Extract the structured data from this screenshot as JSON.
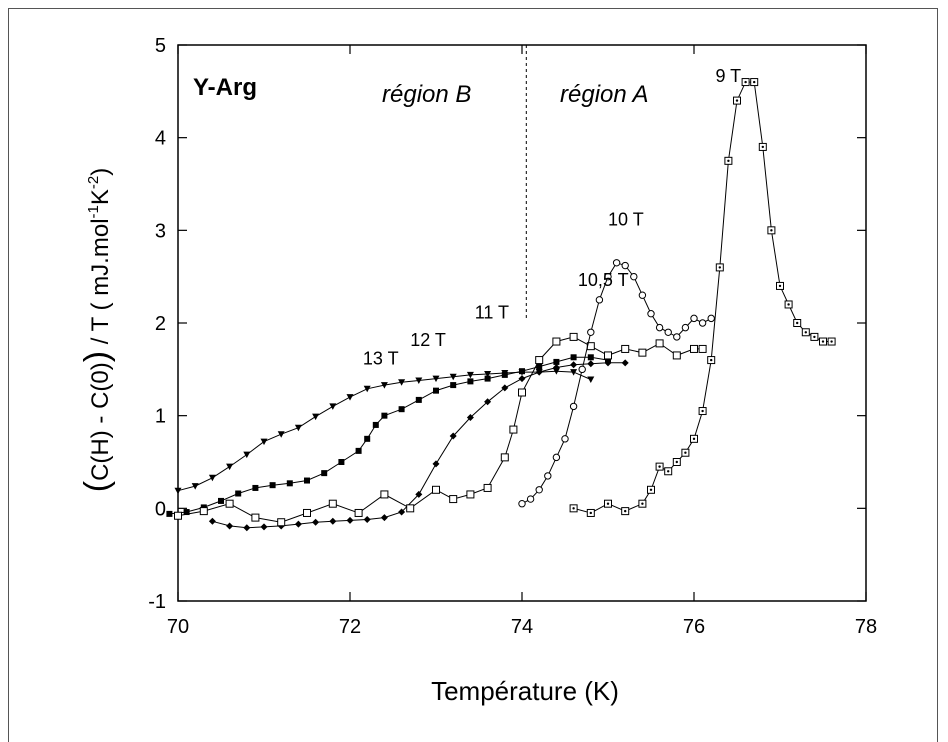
{
  "chart_data": {
    "type": "line",
    "title": "Y-Arg",
    "xlabel": "Température  (K)",
    "ylabel": "C(H) - C(0)) / T  ( mJ.mol -1K -2 )",
    "ylabel_parts": {
      "open_paren": "(",
      "quantity": "C(H) - C(0)",
      "close_paren": ")",
      "divisor": " / T ",
      "unit_open": "( mJ.mol",
      "sup1": "-1",
      "unit_mid": "K",
      "sup2": "-2",
      "unit_close": ")"
    },
    "xlim": [
      70,
      78
    ],
    "ylim": [
      -1,
      5
    ],
    "x_ticks": [
      "70",
      "72",
      "74",
      "76",
      "78"
    ],
    "y_ticks": [
      "-1",
      "0",
      "1",
      "2",
      "3",
      "4",
      "5"
    ],
    "grid": false,
    "region_divider_x": 74.05,
    "region_labels": [
      "région B",
      "région A"
    ],
    "series": [
      {
        "name": "13 T",
        "marker": "triangle-down-filled",
        "label_at": [
          72.15,
          1.55
        ],
        "x": [
          70.0,
          70.2,
          70.4,
          70.6,
          70.8,
          71.0,
          71.2,
          71.4,
          71.6,
          71.8,
          72.0,
          72.2,
          72.4,
          72.6,
          72.8,
          73.0,
          73.2,
          73.4,
          73.6,
          73.8,
          74.0,
          74.2,
          74.4,
          74.6,
          74.8
        ],
        "y": [
          0.19,
          0.24,
          0.33,
          0.45,
          0.58,
          0.72,
          0.8,
          0.87,
          0.99,
          1.1,
          1.2,
          1.29,
          1.33,
          1.36,
          1.38,
          1.4,
          1.42,
          1.44,
          1.45,
          1.46,
          1.47,
          1.47,
          1.48,
          1.47,
          1.39
        ]
      },
      {
        "name": "12 T",
        "marker": "square-filled",
        "label_at": [
          72.7,
          1.75
        ],
        "x": [
          69.9,
          70.1,
          70.3,
          70.5,
          70.7,
          70.9,
          71.1,
          71.3,
          71.5,
          71.7,
          71.9,
          72.1,
          72.2,
          72.3,
          72.4,
          72.6,
          72.8,
          73.0,
          73.2,
          73.4,
          73.6,
          73.8,
          74.0,
          74.2,
          74.4,
          74.6,
          74.8,
          75.0
        ],
        "y": [
          -0.06,
          -0.04,
          0.01,
          0.08,
          0.16,
          0.22,
          0.25,
          0.27,
          0.3,
          0.38,
          0.5,
          0.62,
          0.75,
          0.9,
          1.0,
          1.07,
          1.17,
          1.27,
          1.33,
          1.37,
          1.4,
          1.44,
          1.48,
          1.53,
          1.58,
          1.63,
          1.63,
          1.6
        ]
      },
      {
        "name": "11 T",
        "marker": "diamond-filled",
        "label_at": [
          73.45,
          2.05
        ],
        "x": [
          70.4,
          70.6,
          70.8,
          71.0,
          71.2,
          71.4,
          71.6,
          71.8,
          72.0,
          72.2,
          72.4,
          72.6,
          72.8,
          73.0,
          73.2,
          73.4,
          73.6,
          73.8,
          74.0,
          74.2,
          74.4,
          74.6,
          74.8,
          75.0,
          75.2
        ],
        "y": [
          -0.14,
          -0.19,
          -0.21,
          -0.2,
          -0.19,
          -0.17,
          -0.15,
          -0.14,
          -0.13,
          -0.12,
          -0.1,
          -0.04,
          0.15,
          0.48,
          0.78,
          0.98,
          1.15,
          1.3,
          1.4,
          1.47,
          1.52,
          1.55,
          1.56,
          1.57,
          1.57
        ]
      },
      {
        "name": "10,5 T",
        "marker": "square-open",
        "label_at": [
          74.65,
          2.4
        ],
        "x": [
          70.0,
          70.3,
          70.6,
          70.9,
          71.2,
          71.5,
          71.8,
          72.1,
          72.4,
          72.7,
          73.0,
          73.2,
          73.4,
          73.6,
          73.8,
          73.9,
          74.0,
          74.2,
          74.4,
          74.6,
          74.8,
          75.0,
          75.2,
          75.4,
          75.6,
          75.8,
          76.0,
          76.1
        ],
        "y": [
          -0.08,
          -0.03,
          0.05,
          -0.1,
          -0.15,
          -0.05,
          0.05,
          -0.05,
          0.15,
          0.0,
          0.2,
          0.1,
          0.15,
          0.22,
          0.55,
          0.85,
          1.25,
          1.6,
          1.8,
          1.85,
          1.75,
          1.65,
          1.72,
          1.68,
          1.78,
          1.65,
          1.72,
          1.72
        ]
      },
      {
        "name": "10 T",
        "marker": "circle-open",
        "label_at": [
          75.0,
          3.05
        ],
        "x": [
          74.0,
          74.1,
          74.2,
          74.3,
          74.4,
          74.5,
          74.6,
          74.7,
          74.8,
          74.9,
          75.0,
          75.1,
          75.2,
          75.3,
          75.4,
          75.5,
          75.6,
          75.7,
          75.8,
          75.9,
          76.0,
          76.1,
          76.2
        ],
        "y": [
          0.05,
          0.1,
          0.2,
          0.35,
          0.55,
          0.75,
          1.1,
          1.5,
          1.9,
          2.25,
          2.5,
          2.65,
          2.62,
          2.5,
          2.3,
          2.1,
          1.95,
          1.9,
          1.85,
          1.95,
          2.05,
          2.0,
          2.05
        ]
      },
      {
        "name": "9 T",
        "marker": "square-dotted",
        "label_at": [
          76.25,
          4.6
        ],
        "x": [
          74.6,
          74.8,
          75.0,
          75.2,
          75.4,
          75.5,
          75.6,
          75.7,
          75.8,
          75.9,
          76.0,
          76.1,
          76.2,
          76.3,
          76.4,
          76.5,
          76.6,
          76.7,
          76.8,
          76.9,
          77.0,
          77.1,
          77.2,
          77.3,
          77.4,
          77.5,
          77.6
        ],
        "y": [
          0.0,
          -0.05,
          0.05,
          -0.03,
          0.05,
          0.2,
          0.45,
          0.4,
          0.5,
          0.6,
          0.75,
          1.05,
          1.6,
          2.6,
          3.75,
          4.4,
          4.6,
          4.6,
          3.9,
          3.0,
          2.4,
          2.2,
          2.0,
          1.9,
          1.85,
          1.8,
          1.8
        ]
      }
    ]
  }
}
